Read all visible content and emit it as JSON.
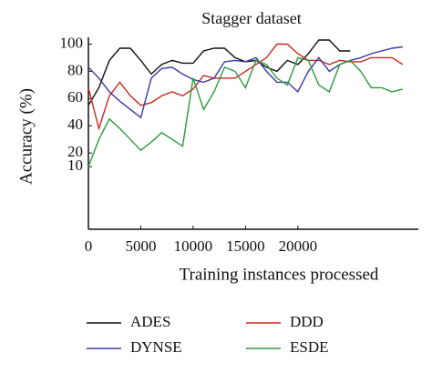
{
  "chart_data": {
    "type": "line",
    "title": "Stagger dataset",
    "x_label": "Training instances processed",
    "y_label": "Accuracy (%)",
    "x": [
      0,
      1000,
      2000,
      3000,
      4000,
      5000,
      6000,
      7000,
      8000,
      9000,
      10000,
      11000,
      12000,
      13000,
      14000,
      15000,
      16000,
      17000,
      18000,
      19000,
      20000,
      21000,
      22000,
      23000,
      24000,
      25000,
      26000,
      27000,
      28000,
      29000,
      30000
    ],
    "series": [
      {
        "name": "ADES",
        "color": "#111111",
        "values": [
          55,
          68,
          88,
          97,
          97,
          88,
          78,
          85,
          88,
          86,
          86,
          95,
          97,
          97,
          90,
          87,
          88,
          83,
          80,
          88,
          85,
          93,
          103,
          103,
          95,
          95,
          null,
          null,
          null,
          null,
          null
        ]
      },
      {
        "name": "DDD",
        "color": "#c8281e",
        "values": [
          68,
          38,
          62,
          72,
          62,
          55,
          57,
          62,
          65,
          62,
          67,
          77,
          75,
          75,
          75,
          80,
          85,
          90,
          100,
          100,
          93,
          88,
          88,
          85,
          88,
          87,
          87,
          90,
          90,
          90,
          85
        ]
      },
      {
        "name": "DYNSE",
        "color": "#3a3aa8",
        "values": [
          83,
          75,
          65,
          58,
          52,
          46,
          75,
          82,
          83,
          78,
          74,
          72,
          75,
          87,
          88,
          87,
          90,
          80,
          72,
          72,
          65,
          80,
          90,
          80,
          85,
          88,
          90,
          93,
          95,
          97,
          98
        ]
      },
      {
        "name": "ESDE",
        "color": "#2e9a3a",
        "values": [
          10,
          30,
          45,
          38,
          30,
          22,
          28,
          35,
          30,
          25,
          75,
          52,
          65,
          83,
          80,
          68,
          88,
          85,
          75,
          70,
          90,
          88,
          70,
          65,
          85,
          88,
          80,
          68,
          68,
          65,
          67
        ]
      }
    ],
    "xlim": [
      0,
      31500
    ],
    "xticks": [
      0,
      5000,
      10000,
      15000,
      20000
    ],
    "ylim": [
      -36,
      105
    ],
    "yticks": [
      100,
      80,
      60,
      40,
      20,
      10
    ],
    "legend": "bottom"
  }
}
